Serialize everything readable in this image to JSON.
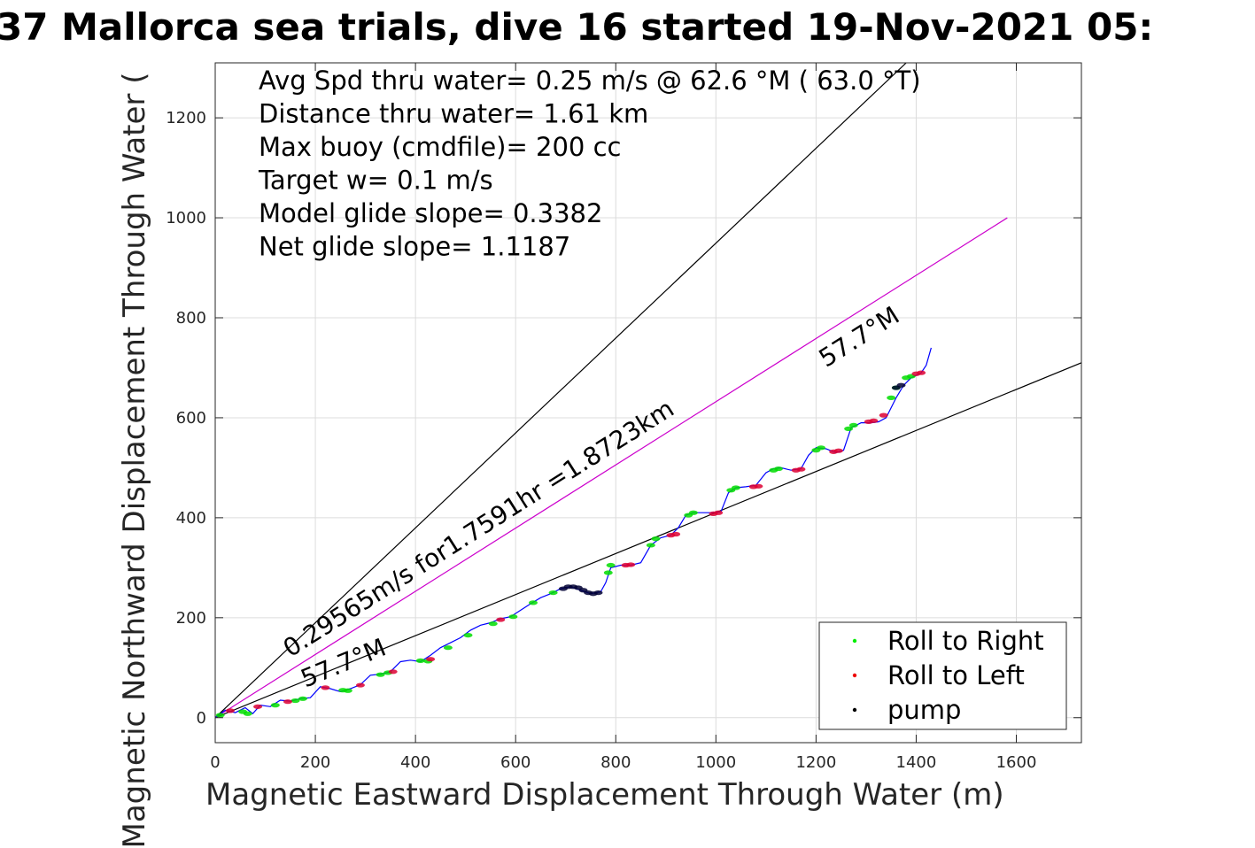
{
  "title": "37 Mallorca sea trials, dive 16 started 19-Nov-2021 05:",
  "chart_data": {
    "type": "line",
    "title": "37 Mallorca sea trials, dive 16 started 19-Nov-2021 05:",
    "xlabel": "Magnetic Eastward Displacement Through Water (m)",
    "ylabel": "Magnetic Northward Displacement Through Water (",
    "xlim": [
      0,
      1730
    ],
    "ylim": [
      -50,
      1310
    ],
    "x_ticks": [
      0,
      200,
      400,
      600,
      800,
      1000,
      1200,
      1400,
      1600
    ],
    "y_ticks": [
      0,
      200,
      400,
      600,
      800,
      1000,
      1200
    ],
    "x_tick_labels": [
      "0",
      "200",
      "400",
      "600",
      "800",
      "1000",
      "1200",
      "1400",
      "1600"
    ],
    "y_tick_labels": [
      "0",
      "200",
      "400",
      "600",
      "800",
      "1000",
      "1200"
    ],
    "grid": true,
    "legend_position": "bottom-right",
    "stats_lines": [
      "Avg Spd thru water=  0.25 m/s @  62.6 °M ( 63.0 °T)",
      "Distance thru water=  1.61 km",
      "Max buoy (cmdfile)= 200 cc",
      "Target w= 0.1 m/s",
      "Model glide slope= 0.3382",
      "Net glide slope= 1.1187"
    ],
    "annotations": [
      {
        "text": "0.29565m/s for1.7591hr =1.8723km",
        "x": 150,
        "y": 120,
        "angle_deg": 32.4
      },
      {
        "text": "57.7°M",
        "x": 180,
        "y": 60,
        "angle_deg": 22.3
      },
      {
        "text": "57.7°M",
        "x": 1220,
        "y": 700,
        "angle_deg": 32.4
      }
    ],
    "reference_lines": [
      {
        "name": "black upper heading line",
        "x": [
          0,
          1380
        ],
        "y": [
          0,
          1310
        ],
        "color": "#000000"
      },
      {
        "name": "black lower heading line",
        "x": [
          0,
          1730
        ],
        "y": [
          0,
          710
        ],
        "color": "#000000"
      },
      {
        "name": "magenta vector",
        "x": [
          0,
          1582
        ],
        "y": [
          0,
          1000
        ],
        "color": "#cc00cc"
      }
    ],
    "series": [
      {
        "name": "",
        "color": "#0000ff",
        "x": [
          0,
          20,
          40,
          60,
          75,
          90,
          110,
          130,
          150,
          170,
          190,
          210,
          230,
          250,
          270,
          290,
          310,
          330,
          350,
          370,
          390,
          410,
          430,
          450,
          470,
          490,
          510,
          530,
          550,
          570,
          590,
          610,
          630,
          650,
          670,
          690,
          710,
          730,
          750,
          770,
          780,
          790,
          810,
          830,
          850,
          870,
          890,
          910,
          925,
          940,
          955,
          970,
          990,
          1010,
          1025,
          1040,
          1060,
          1080,
          1100,
          1115,
          1130,
          1150,
          1170,
          1185,
          1200,
          1220,
          1240,
          1255,
          1270,
          1290,
          1310,
          1325,
          1340,
          1360,
          1375,
          1390,
          1410,
          1420,
          1430
        ],
        "y": [
          0,
          15,
          10,
          20,
          8,
          25,
          22,
          35,
          33,
          38,
          40,
          62,
          58,
          52,
          58,
          66,
          85,
          87,
          92,
          112,
          115,
          112,
          125,
          140,
          150,
          160,
          175,
          185,
          190,
          198,
          202,
          215,
          228,
          240,
          248,
          258,
          262,
          255,
          248,
          252,
          270,
          300,
          305,
          305,
          310,
          345,
          360,
          365,
          380,
          405,
          410,
          410,
          410,
          412,
          450,
          460,
          462,
          465,
          490,
          498,
          500,
          495,
          498,
          525,
          540,
          538,
          530,
          535,
          580,
          590,
          590,
          592,
          600,
          640,
          665,
          680,
          690,
          705,
          740
        ]
      }
    ],
    "legend": [
      {
        "label": "Roll to Right",
        "color": "#00ee00"
      },
      {
        "label": "Roll to Left",
        "color": "#ee0000"
      },
      {
        "label": "pump",
        "color": "#000000"
      }
    ],
    "markers": {
      "roll_right": [
        [
          10,
          5
        ],
        [
          55,
          12
        ],
        [
          65,
          8
        ],
        [
          120,
          25
        ],
        [
          160,
          34
        ],
        [
          175,
          38
        ],
        [
          255,
          55
        ],
        [
          265,
          54
        ],
        [
          330,
          86
        ],
        [
          345,
          90
        ],
        [
          410,
          114
        ],
        [
          425,
          113
        ],
        [
          465,
          140
        ],
        [
          505,
          165
        ],
        [
          555,
          188
        ],
        [
          595,
          202
        ],
        [
          635,
          230
        ],
        [
          675,
          250
        ],
        [
          785,
          290
        ],
        [
          790,
          305
        ],
        [
          870,
          345
        ],
        [
          880,
          358
        ],
        [
          945,
          405
        ],
        [
          955,
          410
        ],
        [
          1030,
          455
        ],
        [
          1040,
          460
        ],
        [
          1115,
          495
        ],
        [
          1125,
          498
        ],
        [
          1200,
          535
        ],
        [
          1210,
          540
        ],
        [
          1265,
          578
        ],
        [
          1275,
          585
        ],
        [
          1350,
          640
        ],
        [
          1360,
          660
        ],
        [
          1380,
          680
        ],
        [
          1390,
          683
        ]
      ],
      "roll_left": [
        [
          30,
          14
        ],
        [
          85,
          22
        ],
        [
          145,
          32
        ],
        [
          220,
          60
        ],
        [
          290,
          65
        ],
        [
          355,
          92
        ],
        [
          430,
          117
        ],
        [
          570,
          196
        ],
        [
          820,
          305
        ],
        [
          830,
          306
        ],
        [
          910,
          365
        ],
        [
          920,
          367
        ],
        [
          995,
          408
        ],
        [
          1005,
          410
        ],
        [
          1075,
          462
        ],
        [
          1085,
          463
        ],
        [
          1160,
          495
        ],
        [
          1170,
          497
        ],
        [
          1235,
          532
        ],
        [
          1245,
          534
        ],
        [
          1305,
          592
        ],
        [
          1315,
          594
        ],
        [
          1335,
          605
        ],
        [
          1400,
          688
        ],
        [
          1410,
          690
        ]
      ],
      "pump": [
        [
          695,
          258
        ],
        [
          705,
          262
        ],
        [
          715,
          262
        ],
        [
          725,
          260
        ],
        [
          735,
          255
        ],
        [
          745,
          250
        ],
        [
          755,
          248
        ],
        [
          765,
          250
        ],
        [
          1360,
          660
        ],
        [
          1370,
          665
        ]
      ]
    }
  }
}
